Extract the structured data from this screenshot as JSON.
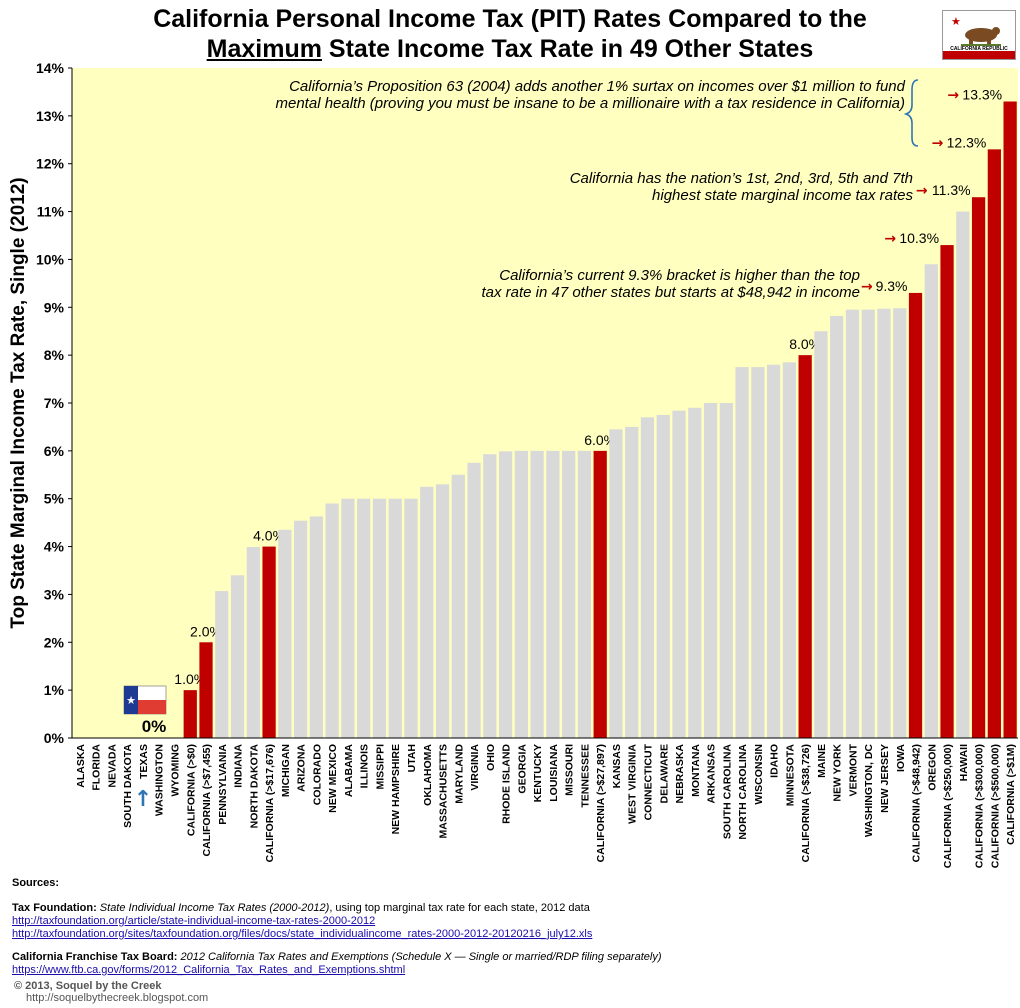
{
  "title": {
    "line1": "California Personal Income Tax (PIT) Rates Compared to the",
    "line2_emph": "Maximum",
    "line2_rest": " State Income Tax Rate in 49 Other States"
  },
  "flag": {
    "text": "CALIFORNIA REPUBLIC"
  },
  "chart_data": {
    "type": "bar",
    "ylabel": "Top State Marginal Income Tax Rate, Single (2012)",
    "xlabel": "",
    "ylim": [
      0,
      14
    ],
    "yticks": [
      "0%",
      "1%",
      "2%",
      "3%",
      "4%",
      "5%",
      "6%",
      "7%",
      "8%",
      "9%",
      "10%",
      "11%",
      "12%",
      "13%",
      "14%"
    ],
    "colors": {
      "state": "#d9d9d9",
      "california": "#c00000",
      "background": "#ffffc0",
      "annotation": "#c00000"
    },
    "bars": [
      {
        "label": "ALASKA",
        "value": 0,
        "ca": false
      },
      {
        "label": "FLORIDA",
        "value": 0,
        "ca": false
      },
      {
        "label": "NEVADA",
        "value": 0,
        "ca": false
      },
      {
        "label": "SOUTH DAKOTA",
        "value": 0,
        "ca": false
      },
      {
        "label": "TEXAS",
        "value": 0,
        "ca": false
      },
      {
        "label": "WASHINGTON",
        "value": 0,
        "ca": false
      },
      {
        "label": "WYOMING",
        "value": 0,
        "ca": false
      },
      {
        "label": "CALIFORNIA (>$0)",
        "value": 1.0,
        "ca": true,
        "tag": "1.0%"
      },
      {
        "label": "CALIFORNIA (>$7,455)",
        "value": 2.0,
        "ca": true,
        "tag": "2.0%"
      },
      {
        "label": "PENNSYLVANIA",
        "value": 3.07,
        "ca": false
      },
      {
        "label": "INDIANA",
        "value": 3.4,
        "ca": false
      },
      {
        "label": "NORTH DAKOTA",
        "value": 3.99,
        "ca": false
      },
      {
        "label": "CALIFORNIA (>$17,676)",
        "value": 4.0,
        "ca": true,
        "tag": "4.0%"
      },
      {
        "label": "MICHIGAN",
        "value": 4.35,
        "ca": false
      },
      {
        "label": "ARIZONA",
        "value": 4.54,
        "ca": false
      },
      {
        "label": "COLORADO",
        "value": 4.63,
        "ca": false
      },
      {
        "label": "NEW MEXICO",
        "value": 4.9,
        "ca": false
      },
      {
        "label": "ALABAMA",
        "value": 5.0,
        "ca": false
      },
      {
        "label": "ILLINOIS",
        "value": 5.0,
        "ca": false
      },
      {
        "label": "MISSIPPI",
        "value": 5.0,
        "ca": false
      },
      {
        "label": "NEW HAMPSHIRE",
        "value": 5.0,
        "ca": false
      },
      {
        "label": "UTAH",
        "value": 5.0,
        "ca": false
      },
      {
        "label": "OKLAHOMA",
        "value": 5.25,
        "ca": false
      },
      {
        "label": "MASSACHUSETTS",
        "value": 5.3,
        "ca": false
      },
      {
        "label": "MARYLAND",
        "value": 5.5,
        "ca": false
      },
      {
        "label": "VIRGINIA",
        "value": 5.75,
        "ca": false
      },
      {
        "label": "OHIO",
        "value": 5.93,
        "ca": false
      },
      {
        "label": "RHODE ISLAND",
        "value": 5.99,
        "ca": false
      },
      {
        "label": "GEORGIA",
        "value": 6.0,
        "ca": false
      },
      {
        "label": "KENTUCKY",
        "value": 6.0,
        "ca": false
      },
      {
        "label": "LOUISIANA",
        "value": 6.0,
        "ca": false
      },
      {
        "label": "MISSOURI",
        "value": 6.0,
        "ca": false
      },
      {
        "label": "TENNESSEE",
        "value": 6.0,
        "ca": false
      },
      {
        "label": "CALIFORNIA (>$27,897)",
        "value": 6.0,
        "ca": true,
        "tag": "6.0%"
      },
      {
        "label": "KANSAS",
        "value": 6.45,
        "ca": false
      },
      {
        "label": "WEST VIRGINIA",
        "value": 6.5,
        "ca": false
      },
      {
        "label": "CONNECTICUT",
        "value": 6.7,
        "ca": false
      },
      {
        "label": "DELAWARE",
        "value": 6.75,
        "ca": false
      },
      {
        "label": "NEBRASKA",
        "value": 6.84,
        "ca": false
      },
      {
        "label": "MONTANA",
        "value": 6.9,
        "ca": false
      },
      {
        "label": "ARKANSAS",
        "value": 7.0,
        "ca": false
      },
      {
        "label": "SOUTH CAROLINA",
        "value": 7.0,
        "ca": false
      },
      {
        "label": "NORTH CAROLINA",
        "value": 7.75,
        "ca": false
      },
      {
        "label": "WISCONSIN",
        "value": 7.75,
        "ca": false
      },
      {
        "label": "IDAHO",
        "value": 7.8,
        "ca": false
      },
      {
        "label": "MINNESOTA",
        "value": 7.85,
        "ca": false
      },
      {
        "label": "CALIFORNIA (>$38,726)",
        "value": 8.0,
        "ca": true,
        "tag": "8.0%"
      },
      {
        "label": "MAINE",
        "value": 8.5,
        "ca": false
      },
      {
        "label": "NEW YORK",
        "value": 8.82,
        "ca": false
      },
      {
        "label": "VERMONT",
        "value": 8.95,
        "ca": false
      },
      {
        "label": "WASHINGTON, DC",
        "value": 8.95,
        "ca": false
      },
      {
        "label": "NEW JERSEY",
        "value": 8.97,
        "ca": false
      },
      {
        "label": "IOWA",
        "value": 8.98,
        "ca": false
      },
      {
        "label": "CALIFORNIA (>$48,942)",
        "value": 9.3,
        "ca": true,
        "tag": "9.3%"
      },
      {
        "label": "OREGON",
        "value": 9.9,
        "ca": false
      },
      {
        "label": "CALIFORNIA (>$250,000)",
        "value": 10.3,
        "ca": true,
        "tag": "10.3%"
      },
      {
        "label": "HAWAII",
        "value": 11.0,
        "ca": false
      },
      {
        "label": "CALIFORNIA (>$300,000)",
        "value": 11.3,
        "ca": true,
        "tag": "11.3%"
      },
      {
        "label": "CALIFORNIA (>$500,000)",
        "value": 12.3,
        "ca": true,
        "tag": "12.3%"
      },
      {
        "label": "CALIFORNIA (>$1M)",
        "value": 13.3,
        "ca": true,
        "tag": "13.3%"
      }
    ],
    "zero_label": "0%",
    "annotations": {
      "prop63": [
        "California’s Proposition 63 (2004) adds another 1% surtax on incomes over $1 million to fund",
        "mental health (proving you must be insane to be a millionaire with a tax residence in California)"
      ],
      "highest": [
        "California has the nation’s 1st, 2nd, 3rd, 5th and 7th",
        "highest state marginal income tax rates"
      ],
      "bracket": [
        "California’s current 9.3% bracket is higher than the top",
        "tax rate in 47 other states but starts at $48,942 in income"
      ]
    }
  },
  "sources": {
    "heading": "Sources:",
    "tf_label": "Tax Foundation:",
    "tf_title": "State Individual Income Tax Rates (2000-2012)",
    "tf_desc": ", using top marginal tax rate for each state, 2012 data",
    "tf_link1": "http://taxfoundation.org/article/state-individual-income-tax-rates-2000-2012",
    "tf_link2": "http://taxfoundation.org/sites/taxfoundation.org/files/docs/state_individualincome_rates-2000-2012-20120216_july12.xls",
    "ftb_label": "California Franchise Tax Board:",
    "ftb_desc": "2012 California Tax Rates and Exemptions (Schedule X — Single or married/RDP filing separately)",
    "ftb_link": "https://www.ftb.ca.gov/forms/2012_California_Tax_Rates_and_Exemptions.shtml"
  },
  "credit": {
    "line1": "2013, Soquel by the Creek",
    "line2": "http://soquelbythecreek.blogspot.com"
  }
}
